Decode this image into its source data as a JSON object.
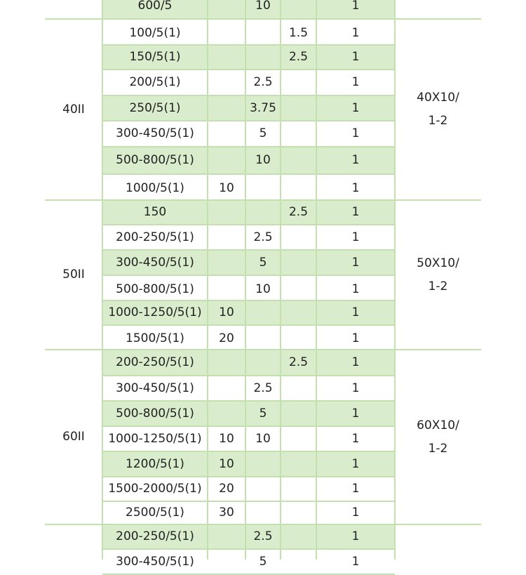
{
  "table": {
    "theme": {
      "band_color": "#d9eccc",
      "line_color": "#c4dfb0",
      "text_color": "#222222"
    },
    "rows": [
      {
        "ratio": "600/5",
        "c2": "",
        "c3": "10",
        "c4": "",
        "c5": "1"
      },
      {
        "ratio": "100/5(1)",
        "c2": "",
        "c3": "",
        "c4": "1.5",
        "c5": "1"
      },
      {
        "ratio": "150/5(1)",
        "c2": "",
        "c3": "",
        "c4": "2.5",
        "c5": "1"
      },
      {
        "ratio": "200/5(1)",
        "c2": "",
        "c3": "2.5",
        "c4": "",
        "c5": "1"
      },
      {
        "ratio": "250/5(1)",
        "c2": "",
        "c3": "3.75",
        "c4": "",
        "c5": "1"
      },
      {
        "ratio": "300-450/5(1)",
        "c2": "",
        "c3": "5",
        "c4": "",
        "c5": "1"
      },
      {
        "ratio": "500-800/5(1)",
        "c2": "",
        "c3": "10",
        "c4": "",
        "c5": "1"
      },
      {
        "ratio": "1000/5(1)",
        "c2": "10",
        "c3": "",
        "c4": "",
        "c5": "1"
      },
      {
        "ratio": "150",
        "c2": "",
        "c3": "",
        "c4": "2.5",
        "c5": "1"
      },
      {
        "ratio": "200-250/5(1)",
        "c2": "",
        "c3": "2.5",
        "c4": "",
        "c5": "1"
      },
      {
        "ratio": "300-450/5(1)",
        "c2": "",
        "c3": "5",
        "c4": "",
        "c5": "1"
      },
      {
        "ratio": "500-800/5(1)",
        "c2": "",
        "c3": "10",
        "c4": "",
        "c5": "1"
      },
      {
        "ratio": "1000-1250/5(1)",
        "c2": "10",
        "c3": "",
        "c4": "",
        "c5": "1"
      },
      {
        "ratio": "1500/5(1)",
        "c2": "20",
        "c3": "",
        "c4": "",
        "c5": "1"
      },
      {
        "ratio": "200-250/5(1)",
        "c2": "",
        "c3": "",
        "c4": "2.5",
        "c5": "1"
      },
      {
        "ratio": "300-450/5(1)",
        "c2": "",
        "c3": "2.5",
        "c4": "",
        "c5": "1"
      },
      {
        "ratio": "500-800/5(1)",
        "c2": "",
        "c3": "5",
        "c4": "",
        "c5": "1"
      },
      {
        "ratio": "1000-1250/5(1)",
        "c2": "10",
        "c3": "10",
        "c4": "",
        "c5": "1"
      },
      {
        "ratio": "1200/5(1)",
        "c2": "10",
        "c3": "",
        "c4": "",
        "c5": "1"
      },
      {
        "ratio": "1500-2000/5(1)",
        "c2": "20",
        "c3": "",
        "c4": "",
        "c5": "1"
      },
      {
        "ratio": "2500/5(1)",
        "c2": "30",
        "c3": "",
        "c4": "",
        "c5": "1"
      },
      {
        "ratio": "200-250/5(1)",
        "c2": "",
        "c3": "2.5",
        "c4": "",
        "c5": "1"
      },
      {
        "ratio": "300-450/5(1)",
        "c2": "",
        "c3": "5",
        "c4": "",
        "c5": "1"
      }
    ],
    "groups": [
      {
        "model": "40II",
        "busbar": "40X10/\n1-2"
      },
      {
        "model": "50II",
        "busbar": "50X10/\n1-2"
      },
      {
        "model": "60II",
        "busbar": "60X10/\n1-2"
      }
    ]
  }
}
